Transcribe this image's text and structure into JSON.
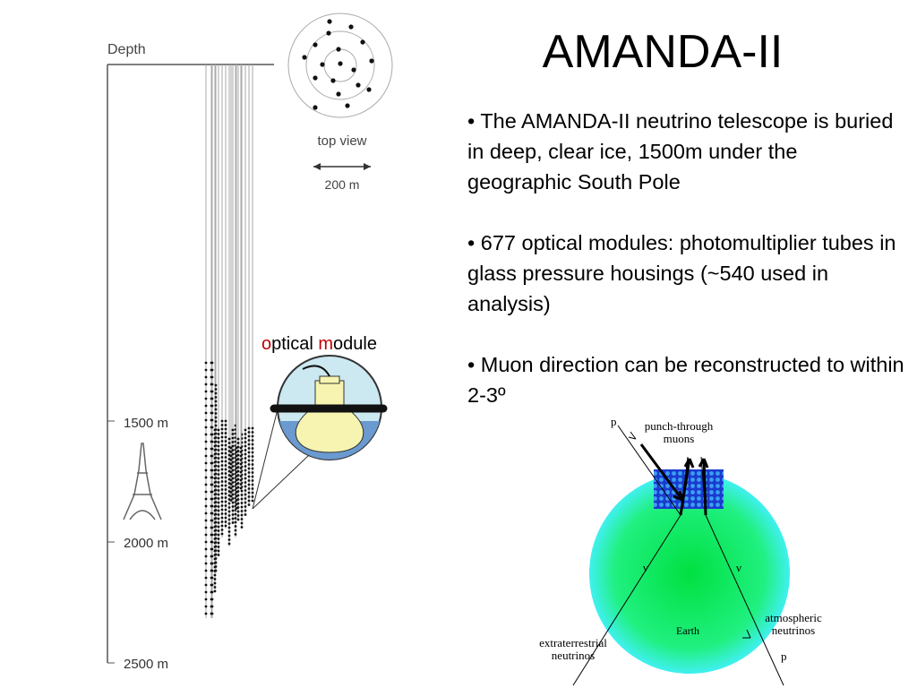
{
  "slide": {
    "title": "AMANDA-II",
    "bullets": [
      "• The AMANDA-II neutrino telescope is buried in deep, clear ice, 1500m under the geographic South Pole",
      "• 677 optical modules: photomultiplier tubes in glass pressure housings (~540 used in analysis)",
      "• Muon direction can be reconstructed to within 2-3º"
    ],
    "detector": {
      "depth_label": "Depth",
      "top_view": "top view",
      "scale": "200 m",
      "depths": [
        "1500 m",
        "2000 m",
        "2500 m"
      ],
      "module_label": [
        "o",
        "ptical ",
        "m",
        "odule"
      ]
    },
    "earth_diagram": {
      "p_top": "p",
      "punch_through": [
        "punch-through",
        "muons"
      ],
      "nu_left": "ν",
      "nu_right": "ν",
      "earth": "Earth",
      "atmospheric": [
        "atmospheric",
        "neutrinos"
      ],
      "extraterrestrial": [
        "extraterrestrial",
        "neutrinos"
      ],
      "p_bottom": "p"
    }
  }
}
